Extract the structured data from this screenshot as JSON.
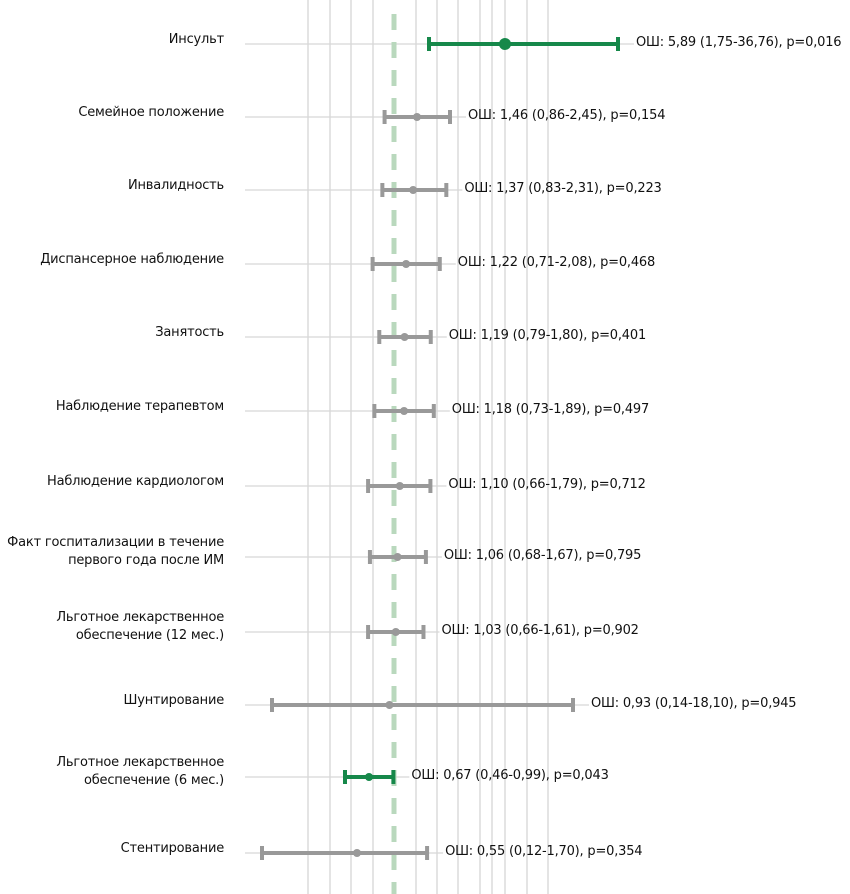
{
  "chart_data": {
    "type": "forest",
    "title": "",
    "xlabel": "",
    "ylabel": "",
    "reference_line": 1,
    "grid": true,
    "x_gridlines": [
      0.2,
      0.3,
      0.45,
      0.65,
      1,
      1.5,
      2.2,
      3.3,
      5,
      6,
      8,
      12,
      16
    ],
    "colors": {
      "significant": "#16884a",
      "nonsignificant": "#999999",
      "reference_line": "#b9d8bd",
      "gridline": "#d6d6d6",
      "text": "#111111"
    },
    "rows": [
      {
        "label": [
          "Инсульт"
        ],
        "or": 5.89,
        "ci_low": 1.75,
        "ci_high": 36.76,
        "p": 0.016,
        "significant": true,
        "text": "ОШ: 5,89 (1,75-36,76), p=0,016"
      },
      {
        "label": [
          "Семейное положение"
        ],
        "or": 1.46,
        "ci_low": 0.86,
        "ci_high": 2.45,
        "p": 0.154,
        "significant": false,
        "text": "ОШ: 1,46 (0,86-2,45), p=0,154"
      },
      {
        "label": [
          "Инвалидность"
        ],
        "or": 1.37,
        "ci_low": 0.83,
        "ci_high": 2.31,
        "p": 0.223,
        "significant": false,
        "text": "ОШ: 1,37 (0,83-2,31), p=0,223"
      },
      {
        "label": [
          "Диспансерное наблюдение"
        ],
        "or": 1.22,
        "ci_low": 0.71,
        "ci_high": 2.08,
        "p": 0.468,
        "significant": false,
        "text": "ОШ: 1,22 (0,71-2,08), p=0,468"
      },
      {
        "label": [
          "Занятость"
        ],
        "or": 1.19,
        "ci_low": 0.79,
        "ci_high": 1.8,
        "p": 0.401,
        "significant": false,
        "text": "ОШ: 1,19 (0,79-1,80), p=0,401"
      },
      {
        "label": [
          "Наблюдение терапевтом"
        ],
        "or": 1.18,
        "ci_low": 0.73,
        "ci_high": 1.89,
        "p": 0.497,
        "significant": false,
        "text": "ОШ: 1,18 (0,73-1,89), p=0,497"
      },
      {
        "label": [
          "Наблюдение кардиологом"
        ],
        "or": 1.1,
        "ci_low": 0.66,
        "ci_high": 1.79,
        "p": 0.712,
        "significant": false,
        "text": "ОШ: 1,10 (0,66-1,79), p=0,712"
      },
      {
        "label": [
          "Факт госпитализации в течение",
          "первого года после ИМ"
        ],
        "or": 1.06,
        "ci_low": 0.68,
        "ci_high": 1.67,
        "p": 0.795,
        "significant": false,
        "text": "ОШ: 1,06 (0,68-1,67), p=0,795"
      },
      {
        "label": [
          "Льготное лекарственное",
          "обеспечение (12 мес.)"
        ],
        "or": 1.03,
        "ci_low": 0.66,
        "ci_high": 1.61,
        "p": 0.902,
        "significant": false,
        "text": "ОШ: 1,03 (0,66-1,61), p=0,902"
      },
      {
        "label": [
          "Шунтирование"
        ],
        "or": 0.93,
        "ci_low": 0.14,
        "ci_high": 18.1,
        "p": 0.945,
        "significant": false,
        "text": "ОШ: 0,93 (0,14-18,10), p=0,945"
      },
      {
        "label": [
          "Льготное лекарственное",
          "обеспечение (6 мес.)"
        ],
        "or": 0.67,
        "ci_low": 0.46,
        "ci_high": 0.99,
        "p": 0.043,
        "significant": true,
        "text": "ОШ: 0,67 (0,46-0,99), p=0,043"
      },
      {
        "label": [
          "Стентирование"
        ],
        "or": 0.55,
        "ci_low": 0.12,
        "ci_high": 1.7,
        "p": 0.354,
        "significant": false,
        "text": "ОШ: 0,55 (0,12-1,70), p=0,354"
      }
    ]
  }
}
